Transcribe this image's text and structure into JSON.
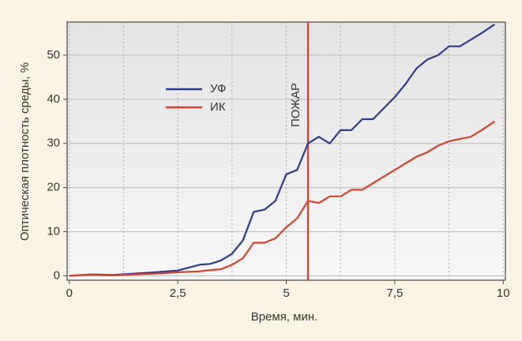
{
  "chart_data": {
    "type": "line",
    "x_label": "Время, мин.",
    "y_label": "Оптическая плотность среды, %",
    "x": [
      0,
      0.5,
      1,
      1.5,
      2,
      2.5,
      3,
      3.25,
      3.5,
      3.75,
      4,
      4.25,
      4.5,
      4.75,
      5,
      5.25,
      5.5,
      5.75,
      6,
      6.25,
      6.5,
      6.75,
      7,
      7.25,
      7.5,
      7.75,
      8,
      8.25,
      8.5,
      8.75,
      9,
      9.25,
      9.5,
      9.8
    ],
    "series": [
      {
        "name": "УФ",
        "color": "#2d3a92",
        "values": [
          0,
          0.3,
          0.2,
          0.5,
          0.8,
          1.2,
          2.5,
          2.7,
          3.5,
          5,
          8,
          14.5,
          15,
          17,
          23,
          24,
          30,
          31.5,
          30,
          33,
          33,
          35.5,
          35.5,
          38,
          40.5,
          43.5,
          47,
          49,
          50,
          52,
          52,
          53.5,
          55,
          57
        ]
      },
      {
        "name": "ИК",
        "color": "#d9412b",
        "values": [
          0,
          0.2,
          0.1,
          0.3,
          0.5,
          0.8,
          1,
          1.3,
          1.5,
          2.5,
          4,
          7.5,
          7.5,
          8.5,
          11,
          13,
          17,
          16.5,
          18,
          18,
          19.5,
          19.5,
          21,
          22.5,
          24,
          25.5,
          27,
          28,
          29.5,
          30.5,
          31,
          31.5,
          33,
          35
        ]
      }
    ],
    "xlim": [
      -0.05,
      10.05
    ],
    "ylim": [
      -1,
      57.5
    ],
    "xticks": [
      0,
      {
        "value": 2.5,
        "label": "2,5"
      },
      5,
      {
        "value": 7.5,
        "label": "7,5"
      },
      10
    ],
    "yticks": [
      0,
      10,
      20,
      30,
      40,
      50
    ],
    "xgrid": [
      1.25,
      3.75,
      6.25,
      8.75
    ],
    "grid": true,
    "event": {
      "x": 5.5,
      "label": "ПОЖАР",
      "color": "#d9412b"
    }
  }
}
